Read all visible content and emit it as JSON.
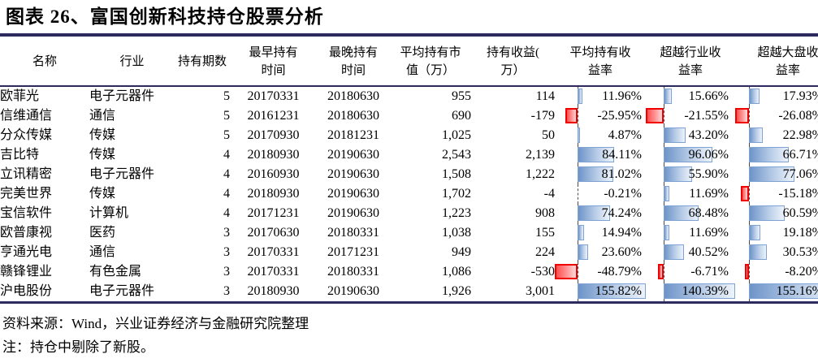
{
  "title": "图表 26、富国创新科技持仓股票分析",
  "footer": {
    "source": "资料来源：Wind，兴业证券经济与金融研究院整理",
    "note": "注：持仓中剔除了新股。"
  },
  "colors": {
    "rule_navy": "#2D2A5D",
    "bar_positive_border": "#7EA2D4",
    "bar_positive_fill_start": "#6D94C8",
    "bar_positive_fill_end": "#EDF3FA",
    "bar_negative_border": "#F00000",
    "bar_negative_fill_start": "#FF4F4F",
    "bar_negative_fill_end": "#FFDCDC",
    "bar_axis": "#4a4a4a"
  },
  "table": {
    "columns": [
      {
        "key": "name",
        "label": "名称",
        "type": "text",
        "class": "c-name"
      },
      {
        "key": "industry",
        "label": "行业",
        "type": "text",
        "class": "c-ind"
      },
      {
        "key": "periods",
        "label": "持有期数",
        "type": "text",
        "class": "c-per"
      },
      {
        "key": "earliest",
        "label": "最早持有\n时间",
        "type": "text",
        "class": "c-date"
      },
      {
        "key": "latest",
        "label": "最晚持有\n时间",
        "type": "text",
        "class": "c-date"
      },
      {
        "key": "avg_mv",
        "label": "平均持有市\n值（万）",
        "type": "text",
        "class": "c-num"
      },
      {
        "key": "profit",
        "label": "持有收益(\n万）",
        "type": "text",
        "class": "c-num2"
      },
      {
        "key": "avg_ret",
        "label": "平均持有收\n益率",
        "type": "bar",
        "class": "c-bar1",
        "scale": {
          "max": 155.82,
          "min": -48.79,
          "axis_frac": 0.25
        }
      },
      {
        "key": "ind_excess",
        "label": "超越行业收\n益率",
        "type": "bar",
        "class": "c-bar2",
        "scale": {
          "max": 140.39,
          "min": -21.55,
          "axis_frac": 0.2
        }
      },
      {
        "key": "mkt_excess",
        "label": "超越大盘收\n益率",
        "type": "bar",
        "class": "c-bar3",
        "scale": {
          "max": 155.16,
          "min": -26.08,
          "axis_frac": 0.13
        }
      }
    ],
    "rows": [
      {
        "name": "欧菲光",
        "industry": "电子元器件",
        "periods": "5",
        "earliest": "20170331",
        "latest": "20180630",
        "avg_mv": "955",
        "profit": "114",
        "avg_ret": "11.96%",
        "ind_excess": "15.66%",
        "mkt_excess": "17.93%"
      },
      {
        "name": "信维通信",
        "industry": "通信",
        "periods": "5",
        "earliest": "20161231",
        "latest": "20180630",
        "avg_mv": "690",
        "profit": "-179",
        "avg_ret": "-25.95%",
        "ind_excess": "-21.55%",
        "mkt_excess": "-26.08%"
      },
      {
        "name": "分众传媒",
        "industry": "传媒",
        "periods": "5",
        "earliest": "20170930",
        "latest": "20181231",
        "avg_mv": "1,025",
        "profit": "50",
        "avg_ret": "4.87%",
        "ind_excess": "43.20%",
        "mkt_excess": "22.98%"
      },
      {
        "name": "吉比特",
        "industry": "传媒",
        "periods": "4",
        "earliest": "20180930",
        "latest": "20190630",
        "avg_mv": "2,543",
        "profit": "2,139",
        "avg_ret": "84.11%",
        "ind_excess": "96.06%",
        "mkt_excess": "66.71%"
      },
      {
        "name": "立讯精密",
        "industry": "电子元器件",
        "periods": "4",
        "earliest": "20160930",
        "latest": "20190630",
        "avg_mv": "1,508",
        "profit": "1,222",
        "avg_ret": "81.02%",
        "ind_excess": "55.90%",
        "mkt_excess": "77.06%"
      },
      {
        "name": "完美世界",
        "industry": "传媒",
        "periods": "4",
        "earliest": "20180930",
        "latest": "20190630",
        "avg_mv": "1,702",
        "profit": "-4",
        "avg_ret": "-0.21%",
        "ind_excess": "11.69%",
        "mkt_excess": "-15.18%"
      },
      {
        "name": "宝信软件",
        "industry": "计算机",
        "periods": "4",
        "earliest": "20171231",
        "latest": "20190630",
        "avg_mv": "1,223",
        "profit": "908",
        "avg_ret": "74.24%",
        "ind_excess": "68.48%",
        "mkt_excess": "60.59%"
      },
      {
        "name": "欧普康视",
        "industry": "医药",
        "periods": "3",
        "earliest": "20170630",
        "latest": "20180331",
        "avg_mv": "1,038",
        "profit": "155",
        "avg_ret": "14.94%",
        "ind_excess": "11.69%",
        "mkt_excess": "19.18%"
      },
      {
        "name": "亨通光电",
        "industry": "通信",
        "periods": "3",
        "earliest": "20170331",
        "latest": "20171231",
        "avg_mv": "949",
        "profit": "224",
        "avg_ret": "23.60%",
        "ind_excess": "40.52%",
        "mkt_excess": "30.53%"
      },
      {
        "name": "赣锋锂业",
        "industry": "有色金属",
        "periods": "3",
        "earliest": "20170331",
        "latest": "20180331",
        "avg_mv": "1,086",
        "profit": "-530",
        "avg_ret": "-48.79%",
        "ind_excess": "-6.71%",
        "mkt_excess": "-8.20%"
      },
      {
        "name": "沪电股份",
        "industry": "电子元器件",
        "periods": "3",
        "earliest": "20180930",
        "latest": "20190630",
        "avg_mv": "1,926",
        "profit": "3,001",
        "avg_ret": "155.82%",
        "ind_excess": "140.39%",
        "mkt_excess": "155.16%"
      }
    ]
  }
}
